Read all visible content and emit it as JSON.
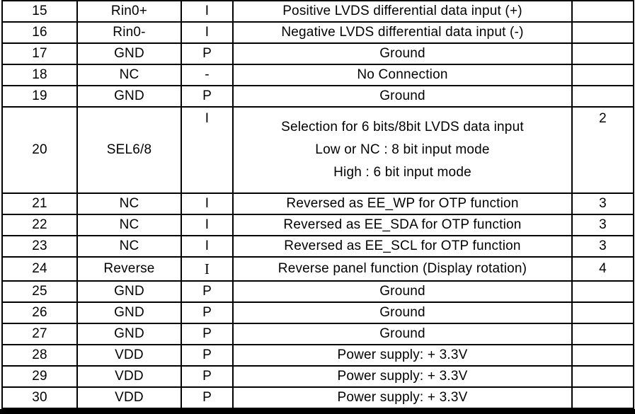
{
  "colors": {
    "background": "#ffffff",
    "border": "#000000",
    "text": "#000000",
    "bottom_bar": "#000000"
  },
  "table": {
    "columns": [
      "pin_number",
      "symbol",
      "io_type",
      "description",
      "note"
    ],
    "rows": [
      {
        "pin": "15",
        "symbol": "Rin0+",
        "io": "I",
        "description": [
          "Positive LVDS differential data input (+)"
        ],
        "note": ""
      },
      {
        "pin": "16",
        "symbol": "Rin0-",
        "io": "I",
        "description": [
          "Negative LVDS differential data input (-)"
        ],
        "note": ""
      },
      {
        "pin": "17",
        "symbol": "GND",
        "io": "P",
        "description": [
          "Ground"
        ],
        "note": ""
      },
      {
        "pin": "18",
        "symbol": "NC",
        "io": "-",
        "description": [
          "No Connection"
        ],
        "note": ""
      },
      {
        "pin": "19",
        "symbol": "GND",
        "io": "P",
        "description": [
          "Ground"
        ],
        "note": ""
      },
      {
        "pin": "20",
        "symbol": "SEL6/8",
        "io": "I",
        "tall": true,
        "description": [
          "Selection for 6 bits/8bit LVDS data input",
          "Low or NC : 8 bit input mode",
          "High : 6 bit input mode"
        ],
        "note": "2"
      },
      {
        "pin": "21",
        "symbol": "NC",
        "io": "I",
        "description": [
          "Reversed as EE_WP for OTP function"
        ],
        "note": "3"
      },
      {
        "pin": "22",
        "symbol": "NC",
        "io": "I",
        "description": [
          "Reversed as EE_SDA for OTP function"
        ],
        "note": "3"
      },
      {
        "pin": "23",
        "symbol": "NC",
        "io": "I",
        "description": [
          "Reversed as EE_SCL for OTP function"
        ],
        "note": "3"
      },
      {
        "pin": "24",
        "symbol": "Reverse",
        "io": "I",
        "io_serif": true,
        "description": [
          "Reverse panel function (Display rotation)"
        ],
        "note": "4"
      },
      {
        "pin": "25",
        "symbol": "GND",
        "io": "P",
        "description": [
          "Ground"
        ],
        "note": ""
      },
      {
        "pin": "26",
        "symbol": "GND",
        "io": "P",
        "description": [
          "Ground"
        ],
        "note": ""
      },
      {
        "pin": "27",
        "symbol": "GND",
        "io": "P",
        "description": [
          "Ground"
        ],
        "note": ""
      },
      {
        "pin": "28",
        "symbol": "VDD",
        "io": "P",
        "description": [
          "Power supply: + 3.3V"
        ],
        "note": ""
      },
      {
        "pin": "29",
        "symbol": "VDD",
        "io": "P",
        "description": [
          "Power supply: + 3.3V"
        ],
        "note": ""
      },
      {
        "pin": "30",
        "symbol": "VDD",
        "io": "P",
        "description": [
          "Power supply: + 3.3V"
        ],
        "note": ""
      }
    ]
  }
}
